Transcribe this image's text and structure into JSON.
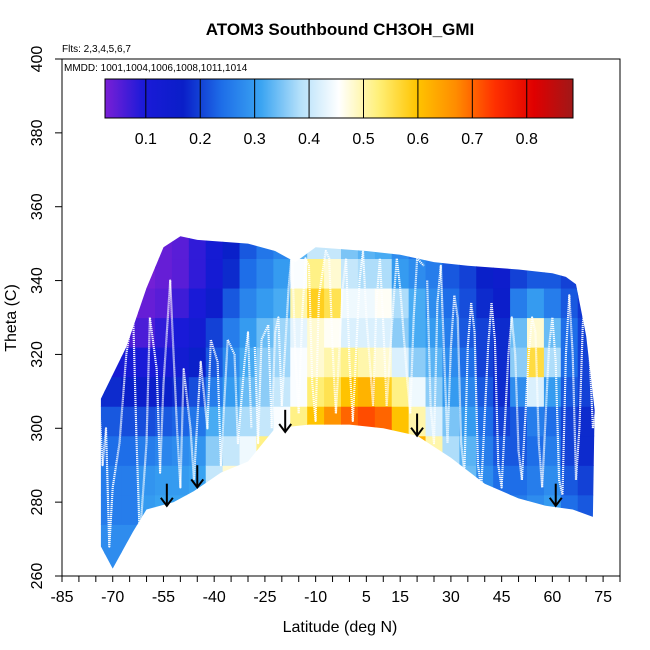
{
  "chart_data": {
    "type": "heatmap",
    "title": "ATOM3 Southbound CH3OH_GMI",
    "flights_note": "Flts: 2,3,4,5,6,7",
    "mmdd_note": "MMDD: 1001,1004,1006,1008,1011,1014",
    "xlabel": "Latitude (deg N)",
    "ylabel": "Theta (C)",
    "xlim": [
      -85,
      80
    ],
    "ylim": [
      260,
      400
    ],
    "x_tick_labels": [
      "-85",
      "-70",
      "-55",
      "-40",
      "-25",
      "-10",
      "5",
      "15",
      "30",
      "45",
      "60",
      "75"
    ],
    "x_tick_values": [
      -85,
      -70,
      -55,
      -40,
      -25,
      -10,
      5,
      15,
      30,
      45,
      60,
      75
    ],
    "y_tick_labels": [
      "260",
      "280",
      "300",
      "320",
      "340",
      "360",
      "380",
      "400"
    ],
    "y_tick_values": [
      260,
      280,
      300,
      320,
      340,
      360,
      380,
      400
    ],
    "colorbar": {
      "range": [
        0.025,
        0.885
      ],
      "tick_labels": [
        "0.1",
        "0.2",
        "0.3",
        "0.4",
        "0.5",
        "0.6",
        "0.7",
        "0.8"
      ],
      "tick_values": [
        0.1,
        0.2,
        0.3,
        0.4,
        0.5,
        0.6,
        0.7,
        0.8
      ],
      "colors": [
        "#7a1fd6",
        "#1a1ad8",
        "#0a1ec8",
        "#1e6ee8",
        "#3aa4f2",
        "#b4e0fa",
        "#ffffff",
        "#fff07a",
        "#ffc400",
        "#ff8c00",
        "#ff3000",
        "#e00000",
        "#a01818"
      ]
    },
    "domain_bottom": [
      [
        -73.5,
        268
      ],
      [
        -70,
        262
      ],
      [
        -64,
        272
      ],
      [
        -60,
        278
      ],
      [
        -52,
        280
      ],
      [
        -46,
        283
      ],
      [
        -38,
        288
      ],
      [
        -30,
        291
      ],
      [
        -22,
        300
      ],
      [
        -12,
        301
      ],
      [
        0,
        301
      ],
      [
        10,
        300
      ],
      [
        20,
        298
      ],
      [
        30,
        292
      ],
      [
        40,
        285
      ],
      [
        50,
        281
      ],
      [
        58,
        279
      ],
      [
        66,
        278
      ],
      [
        72,
        276
      ]
    ],
    "domain_top": [
      [
        -73.5,
        308
      ],
      [
        -66,
        322
      ],
      [
        -60,
        338
      ],
      [
        -55,
        349
      ],
      [
        -50,
        352
      ],
      [
        -45,
        351
      ],
      [
        -30,
        350
      ],
      [
        -22,
        348
      ],
      [
        -16,
        345
      ],
      [
        -10,
        349
      ],
      [
        5,
        348
      ],
      [
        15,
        347
      ],
      [
        25,
        345
      ],
      [
        35,
        344
      ],
      [
        50,
        343
      ],
      [
        60,
        342
      ],
      [
        64,
        341
      ],
      [
        67,
        339
      ],
      [
        70,
        325
      ],
      [
        72.5,
        305
      ]
    ],
    "value_grid": {
      "lats": [
        -75,
        -70,
        -65,
        -60,
        -55,
        -50,
        -45,
        -40,
        -35,
        -30,
        -25,
        -20,
        -15,
        -10,
        -5,
        0,
        5,
        10,
        15,
        20,
        25,
        30,
        35,
        40,
        45,
        50,
        55,
        60,
        65,
        70,
        75
      ],
      "thetas": [
        262,
        270,
        278,
        286,
        294,
        302,
        310,
        318,
        326,
        334,
        342,
        350,
        358
      ],
      "values": [
        [
          0.28,
          0.28,
          0.26,
          0.26,
          0.24,
          0.22,
          0.18,
          0.12,
          0.06,
          0.03,
          0.03,
          0.03,
          0.03
        ],
        [
          0.28,
          0.28,
          0.26,
          0.26,
          0.24,
          0.22,
          0.18,
          0.12,
          0.06,
          0.03,
          0.03,
          0.03,
          0.03
        ],
        [
          0.28,
          0.28,
          0.26,
          0.26,
          0.24,
          0.21,
          0.17,
          0.11,
          0.06,
          0.03,
          0.03,
          0.03,
          0.03
        ],
        [
          0.3,
          0.3,
          0.3,
          0.29,
          0.26,
          0.21,
          0.16,
          0.1,
          0.06,
          0.04,
          0.03,
          0.03,
          0.03
        ],
        [
          0.32,
          0.32,
          0.31,
          0.3,
          0.27,
          0.22,
          0.17,
          0.11,
          0.08,
          0.05,
          0.04,
          0.04,
          0.04
        ],
        [
          0.32,
          0.32,
          0.31,
          0.3,
          0.28,
          0.23,
          0.18,
          0.13,
          0.1,
          0.07,
          0.05,
          0.05,
          0.05
        ],
        [
          0.32,
          0.32,
          0.32,
          0.31,
          0.29,
          0.25,
          0.21,
          0.17,
          0.13,
          0.1,
          0.08,
          0.08,
          0.08
        ],
        [
          0.4,
          0.4,
          0.42,
          0.4,
          0.36,
          0.32,
          0.26,
          0.22,
          0.2,
          0.15,
          0.12,
          0.12,
          0.12
        ],
        [
          0.45,
          0.45,
          0.5,
          0.48,
          0.4,
          0.35,
          0.3,
          0.28,
          0.26,
          0.22,
          0.18,
          0.17,
          0.17
        ],
        [
          0.46,
          0.46,
          0.56,
          0.58,
          0.44,
          0.38,
          0.34,
          0.32,
          0.3,
          0.27,
          0.24,
          0.22,
          0.22
        ],
        [
          0.5,
          0.5,
          0.58,
          0.62,
          0.52,
          0.4,
          0.36,
          0.36,
          0.34,
          0.3,
          0.27,
          0.25,
          0.25
        ],
        [
          0.52,
          0.52,
          0.6,
          0.65,
          0.6,
          0.45,
          0.4,
          0.37,
          0.37,
          0.32,
          0.3,
          0.27,
          0.27
        ],
        [
          0.55,
          0.55,
          0.62,
          0.68,
          0.66,
          0.52,
          0.45,
          0.45,
          0.43,
          0.5,
          0.45,
          0.33,
          0.33
        ],
        [
          0.55,
          0.55,
          0.62,
          0.72,
          0.7,
          0.6,
          0.53,
          0.48,
          0.48,
          0.58,
          0.52,
          0.4,
          0.4
        ],
        [
          0.55,
          0.55,
          0.62,
          0.78,
          0.75,
          0.66,
          0.55,
          0.5,
          0.46,
          0.55,
          0.48,
          0.4,
          0.4
        ],
        [
          0.55,
          0.55,
          0.62,
          0.82,
          0.78,
          0.7,
          0.6,
          0.52,
          0.42,
          0.44,
          0.4,
          0.35,
          0.35
        ],
        [
          0.55,
          0.55,
          0.64,
          0.84,
          0.78,
          0.72,
          0.62,
          0.5,
          0.42,
          0.44,
          0.38,
          0.33,
          0.33
        ],
        [
          0.55,
          0.55,
          0.65,
          0.86,
          0.76,
          0.7,
          0.58,
          0.48,
          0.42,
          0.46,
          0.38,
          0.32,
          0.32
        ],
        [
          0.55,
          0.55,
          0.62,
          0.78,
          0.68,
          0.6,
          0.52,
          0.42,
          0.36,
          0.38,
          0.3,
          0.28,
          0.28
        ],
        [
          0.52,
          0.52,
          0.6,
          0.66,
          0.62,
          0.5,
          0.44,
          0.36,
          0.32,
          0.32,
          0.28,
          0.25,
          0.25
        ],
        [
          0.5,
          0.5,
          0.54,
          0.56,
          0.5,
          0.42,
          0.36,
          0.33,
          0.3,
          0.28,
          0.26,
          0.24,
          0.24
        ],
        [
          0.42,
          0.42,
          0.42,
          0.4,
          0.38,
          0.35,
          0.3,
          0.28,
          0.26,
          0.24,
          0.22,
          0.22,
          0.22
        ],
        [
          0.36,
          0.36,
          0.36,
          0.34,
          0.33,
          0.3,
          0.27,
          0.24,
          0.22,
          0.21,
          0.2,
          0.2,
          0.2
        ],
        [
          0.3,
          0.3,
          0.3,
          0.28,
          0.26,
          0.24,
          0.22,
          0.2,
          0.2,
          0.18,
          0.17,
          0.17,
          0.17
        ],
        [
          0.26,
          0.26,
          0.26,
          0.24,
          0.22,
          0.2,
          0.18,
          0.18,
          0.18,
          0.16,
          0.15,
          0.15,
          0.15
        ],
        [
          0.24,
          0.24,
          0.26,
          0.24,
          0.22,
          0.22,
          0.28,
          0.36,
          0.34,
          0.26,
          0.2,
          0.18,
          0.18
        ],
        [
          0.26,
          0.26,
          0.28,
          0.26,
          0.24,
          0.26,
          0.42,
          0.56,
          0.48,
          0.3,
          0.22,
          0.2,
          0.2
        ],
        [
          0.28,
          0.28,
          0.3,
          0.28,
          0.26,
          0.24,
          0.3,
          0.38,
          0.34,
          0.26,
          0.22,
          0.2,
          0.2
        ],
        [
          0.24,
          0.24,
          0.24,
          0.22,
          0.2,
          0.2,
          0.22,
          0.24,
          0.24,
          0.22,
          0.2,
          0.18,
          0.18
        ],
        [
          0.22,
          0.22,
          0.22,
          0.2,
          0.18,
          0.18,
          0.2,
          0.2,
          0.2,
          0.19,
          0.18,
          0.17,
          0.17
        ],
        [
          0.22,
          0.22,
          0.22,
          0.2,
          0.18,
          0.18,
          0.2,
          0.2,
          0.2,
          0.19,
          0.18,
          0.17,
          0.17
        ]
      ]
    },
    "arrows": [
      {
        "lat": -54,
        "theta_top": 285,
        "theta_tip": 279
      },
      {
        "lat": -45,
        "theta_top": 290,
        "theta_tip": 284
      },
      {
        "lat": -19,
        "theta_top": 305,
        "theta_tip": 299
      },
      {
        "lat": 20,
        "theta_top": 304,
        "theta_tip": 298
      },
      {
        "lat": 61,
        "theta_top": 285,
        "theta_tip": 279
      }
    ],
    "flight_tracks": [
      [
        [
          -74,
          306
        ],
        [
          -73,
          290
        ],
        [
          -72,
          300
        ],
        [
          -71,
          268
        ],
        [
          -70,
          284
        ],
        [
          -68,
          296
        ],
        [
          -66,
          320
        ],
        [
          -64,
          332
        ],
        [
          -63,
          298
        ],
        [
          -62,
          270
        ],
        [
          -60,
          296
        ],
        [
          -59,
          330
        ],
        [
          -57,
          316
        ],
        [
          -56,
          288
        ],
        [
          -55,
          312
        ],
        [
          -53,
          340
        ],
        [
          -51,
          300
        ],
        [
          -50,
          284
        ],
        [
          -49,
          316
        ],
        [
          -47,
          300
        ],
        [
          -46,
          286
        ],
        [
          -44,
          318
        ],
        [
          -42,
          300
        ],
        [
          -41,
          324
        ],
        [
          -39,
          318
        ],
        [
          -38,
          290
        ],
        [
          -36,
          324
        ],
        [
          -34,
          320
        ],
        [
          -33,
          296
        ],
        [
          -31,
          318
        ],
        [
          -30,
          326
        ],
        [
          -29,
          300
        ]
      ],
      [
        [
          -28,
          322
        ],
        [
          -27,
          296
        ],
        [
          -26,
          324
        ],
        [
          -24,
          328
        ],
        [
          -23,
          300
        ],
        [
          -22,
          326
        ],
        [
          -21,
          330
        ],
        [
          -20,
          306
        ],
        [
          -18,
          338
        ],
        [
          -17,
          348
        ],
        [
          -16,
          320
        ],
        [
          -15,
          304
        ],
        [
          -14,
          330
        ],
        [
          -13,
          346
        ],
        [
          -12,
          344
        ],
        [
          -11,
          312
        ],
        [
          -10,
          302
        ],
        [
          -9,
          336
        ],
        [
          -7,
          348
        ],
        [
          -6,
          346
        ],
        [
          -5,
          322
        ],
        [
          -4,
          304
        ],
        [
          -2,
          338
        ],
        [
          -1,
          346
        ],
        [
          0,
          318
        ],
        [
          1,
          302
        ],
        [
          3,
          340
        ],
        [
          4,
          348
        ],
        [
          5,
          330
        ],
        [
          7,
          306
        ],
        [
          8,
          334
        ],
        [
          9,
          346
        ],
        [
          10,
          328
        ],
        [
          11,
          306
        ],
        [
          13,
          334
        ],
        [
          14,
          346
        ],
        [
          15,
          338
        ],
        [
          17,
          314
        ],
        [
          18,
          304
        ],
        [
          19,
          330
        ],
        [
          20,
          346
        ],
        [
          22,
          344
        ]
      ],
      [
        [
          23,
          340
        ],
        [
          24,
          306
        ],
        [
          25,
          296
        ],
        [
          26,
          334
        ],
        [
          27,
          344
        ],
        [
          28,
          320
        ],
        [
          29,
          296
        ],
        [
          30,
          322
        ],
        [
          31,
          336
        ],
        [
          32,
          330
        ],
        [
          33,
          296
        ],
        [
          34,
          288
        ],
        [
          35,
          322
        ],
        [
          36,
          334
        ],
        [
          37,
          326
        ],
        [
          38,
          290
        ],
        [
          39,
          284
        ],
        [
          41,
          322
        ],
        [
          42,
          334
        ],
        [
          43,
          324
        ],
        [
          44,
          290
        ],
        [
          45,
          284
        ],
        [
          47,
          320
        ],
        [
          48,
          330
        ],
        [
          49,
          320
        ],
        [
          50,
          294
        ],
        [
          51,
          286
        ],
        [
          53,
          320
        ],
        [
          54,
          330
        ],
        [
          55,
          326
        ],
        [
          56,
          296
        ],
        [
          57,
          284
        ],
        [
          59,
          322
        ],
        [
          60,
          330
        ],
        [
          61,
          318
        ],
        [
          62,
          286
        ],
        [
          63,
          282
        ],
        [
          64,
          320
        ],
        [
          65,
          336
        ],
        [
          66,
          320
        ],
        [
          67,
          286
        ],
        [
          68,
          300
        ],
        [
          69,
          328
        ],
        [
          70,
          340
        ],
        [
          71,
          320
        ],
        [
          72,
          300
        ],
        [
          73,
          305
        ]
      ]
    ]
  }
}
